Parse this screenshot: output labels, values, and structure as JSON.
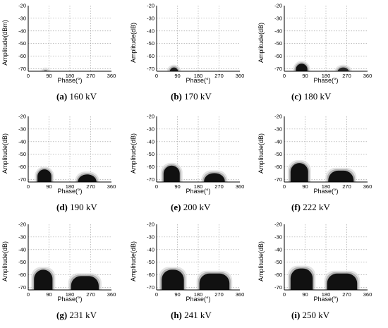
{
  "figure": {
    "x_ticks": [
      0,
      90,
      180,
      270,
      360
    ],
    "y_ticks": [
      -20,
      -30,
      -40,
      -50,
      -60,
      -70
    ]
  },
  "chart_data": [
    {
      "type": "heatmap",
      "id": "a",
      "caption_letter": "(a)",
      "caption_text": "160 kV",
      "xlabel": "Phase(°)",
      "ylabel": "Amplitude(dBm)",
      "xlim": [
        0,
        360
      ],
      "ylim": [
        -72,
        -20
      ],
      "grid": true,
      "x_ticks": [
        "0",
        "90",
        "180",
        "270",
        "360"
      ],
      "y_ticks": [
        "-20",
        "-30",
        "-40",
        "-50",
        "-60",
        "-70"
      ],
      "clusters": [
        {
          "phase_center": 75,
          "phase_halfwidth": 12,
          "amplitude_peak": -71,
          "intensity": 0.2
        }
      ]
    },
    {
      "type": "heatmap",
      "id": "b",
      "caption_letter": "(b)",
      "caption_text": "170 kV",
      "xlabel": "Phase(°)",
      "ylabel": "Amplitude(dB)",
      "xlim": [
        0,
        360
      ],
      "ylim": [
        -72,
        -20
      ],
      "grid": true,
      "x_ticks": [
        "0",
        "90",
        "180",
        "270",
        "360"
      ],
      "y_ticks": [
        "-20",
        "-30",
        "-40",
        "-50",
        "-60",
        "-70"
      ],
      "clusters": [
        {
          "phase_center": 75,
          "phase_halfwidth": 18,
          "amplitude_peak": -69,
          "intensity": 0.9
        }
      ]
    },
    {
      "type": "heatmap",
      "id": "c",
      "caption_letter": "(c)",
      "caption_text": "180 kV",
      "xlabel": "Phase(°)",
      "ylabel": "Amplitude(dB)",
      "xlim": [
        0,
        360
      ],
      "ylim": [
        -72,
        -20
      ],
      "grid": true,
      "x_ticks": [
        "0",
        "90",
        "180",
        "270",
        "360"
      ],
      "y_ticks": [
        "-20",
        "-30",
        "-40",
        "-50",
        "-60",
        "-70"
      ],
      "clusters": [
        {
          "phase_center": 75,
          "phase_halfwidth": 25,
          "amplitude_peak": -66,
          "intensity": 1
        },
        {
          "phase_center": 255,
          "phase_halfwidth": 25,
          "amplitude_peak": -69,
          "intensity": 0.8
        }
      ]
    },
    {
      "type": "heatmap",
      "id": "d",
      "caption_letter": "(d)",
      "caption_text": "190 kV",
      "xlabel": "Phase(°)",
      "ylabel": "Amplitude(dB)",
      "xlim": [
        0,
        360
      ],
      "ylim": [
        -72,
        -20
      ],
      "grid": true,
      "x_ticks": [
        "0",
        "90",
        "180",
        "270",
        "360"
      ],
      "y_ticks": [
        "-20",
        "-30",
        "-40",
        "-50",
        "-60",
        "-70"
      ],
      "clusters": [
        {
          "phase_center": 70,
          "phase_halfwidth": 30,
          "amplitude_peak": -62,
          "intensity": 1
        },
        {
          "phase_center": 255,
          "phase_halfwidth": 40,
          "amplitude_peak": -66,
          "intensity": 1
        }
      ]
    },
    {
      "type": "heatmap",
      "id": "e",
      "caption_letter": "(e)",
      "caption_text": "200 kV",
      "xlabel": "Phase(°)",
      "ylabel": "Amplitude(dB)",
      "xlim": [
        0,
        360
      ],
      "ylim": [
        -72,
        -20
      ],
      "grid": true,
      "x_ticks": [
        "0",
        "90",
        "180",
        "270",
        "360"
      ],
      "y_ticks": [
        "-20",
        "-30",
        "-40",
        "-50",
        "-60",
        "-70"
      ],
      "clusters": [
        {
          "phase_center": 65,
          "phase_halfwidth": 35,
          "amplitude_peak": -59,
          "intensity": 1
        },
        {
          "phase_center": 250,
          "phase_halfwidth": 45,
          "amplitude_peak": -65,
          "intensity": 1
        }
      ]
    },
    {
      "type": "heatmap",
      "id": "f",
      "caption_letter": "(f)",
      "caption_text": "222 kV",
      "xlabel": "Phase(°)",
      "ylabel": "Amplitude(dB)",
      "xlim": [
        0,
        360
      ],
      "ylim": [
        -72,
        -20
      ],
      "grid": true,
      "x_ticks": [
        "0",
        "90",
        "180",
        "270",
        "360"
      ],
      "y_ticks": [
        "-20",
        "-30",
        "-40",
        "-50",
        "-60",
        "-70"
      ],
      "clusters": [
        {
          "phase_center": 65,
          "phase_halfwidth": 38,
          "amplitude_peak": -57,
          "intensity": 1
        },
        {
          "phase_center": 245,
          "phase_halfwidth": 55,
          "amplitude_peak": -63,
          "intensity": 1
        }
      ]
    },
    {
      "type": "heatmap",
      "id": "g",
      "caption_letter": "(g)",
      "caption_text": "231 kV",
      "xlabel": "Phase(°)",
      "ylabel": "Amplitude(dB)",
      "xlim": [
        0,
        360
      ],
      "ylim": [
        -72,
        -20
      ],
      "grid": true,
      "x_ticks": [
        "0",
        "90",
        "180",
        "270",
        "360"
      ],
      "y_ticks": [
        "-20",
        "-30",
        "-40",
        "-50",
        "-60",
        "-70"
      ],
      "clusters": [
        {
          "phase_center": 65,
          "phase_halfwidth": 40,
          "amplitude_peak": -56,
          "intensity": 1
        },
        {
          "phase_center": 245,
          "phase_halfwidth": 60,
          "amplitude_peak": -61,
          "intensity": 1
        }
      ]
    },
    {
      "type": "heatmap",
      "id": "h",
      "caption_letter": "(h)",
      "caption_text": "241 kV",
      "xlabel": "Phase(°)",
      "ylabel": "Amplitude(dB)",
      "xlim": [
        0,
        360
      ],
      "ylim": [
        -72,
        -20
      ],
      "grid": true,
      "x_ticks": [
        "0",
        "90",
        "180",
        "270",
        "360"
      ],
      "y_ticks": [
        "-20",
        "-30",
        "-40",
        "-50",
        "-60",
        "-70"
      ],
      "clusters": [
        {
          "phase_center": 70,
          "phase_halfwidth": 48,
          "amplitude_peak": -56,
          "intensity": 1
        },
        {
          "phase_center": 250,
          "phase_halfwidth": 65,
          "amplitude_peak": -59,
          "intensity": 1
        }
      ]
    },
    {
      "type": "heatmap",
      "id": "i",
      "caption_letter": "(i)",
      "caption_text": "250 kV",
      "xlabel": "Phase(°)",
      "ylabel": "Amplitude(dB)",
      "xlim": [
        0,
        360
      ],
      "ylim": [
        -72,
        -20
      ],
      "grid": true,
      "x_ticks": [
        "0",
        "90",
        "180",
        "270",
        "360"
      ],
      "y_ticks": [
        "-20",
        "-30",
        "-40",
        "-50",
        "-60",
        "-70"
      ],
      "clusters": [
        {
          "phase_center": 75,
          "phase_halfwidth": 48,
          "amplitude_peak": -55,
          "intensity": 1
        },
        {
          "phase_center": 250,
          "phase_halfwidth": 65,
          "amplitude_peak": -59,
          "intensity": 1
        }
      ]
    }
  ]
}
